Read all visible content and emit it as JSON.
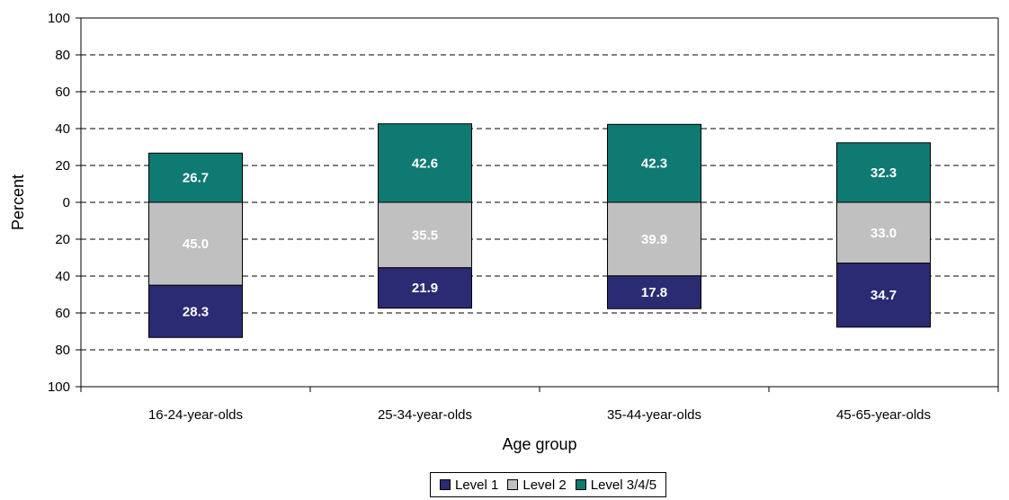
{
  "chart_data": {
    "type": "bar",
    "subtype": "diverging-stacked",
    "xlabel": "Age group",
    "ylabel": "Percent",
    "y_tick_labels": [
      "100",
      "80",
      "60",
      "40",
      "20",
      "0",
      "20",
      "40",
      "60",
      "80",
      "100"
    ],
    "y_tick_values": [
      100,
      80,
      60,
      40,
      20,
      0,
      -20,
      -40,
      -60,
      -80,
      -100
    ],
    "ylim": [
      -100,
      100
    ],
    "grid": "dashed horizontal",
    "legend_position": "bottom-center",
    "categories": [
      "16-24-year-olds",
      "25-34-year-olds",
      "35-44-year-olds",
      "45-65-year-olds"
    ],
    "series": [
      {
        "name": "Level 1",
        "color": "#2b2b73",
        "direction": "below",
        "values": [
          28.3,
          21.9,
          17.8,
          34.7
        ],
        "labels": [
          "28.3",
          "21.9",
          "17.8",
          "34.7"
        ]
      },
      {
        "name": "Level 2",
        "color": "#c0c0c0",
        "direction": "below",
        "values": [
          45.0,
          35.5,
          39.9,
          33.0
        ],
        "labels": [
          "45.0",
          "35.5",
          "39.9",
          "33.0"
        ]
      },
      {
        "name": "Level 3/4/5",
        "color": "#0e7a72",
        "direction": "above",
        "values": [
          26.7,
          42.6,
          42.3,
          32.3
        ],
        "labels": [
          "26.7",
          "42.6",
          "42.3",
          "32.3"
        ]
      }
    ]
  }
}
